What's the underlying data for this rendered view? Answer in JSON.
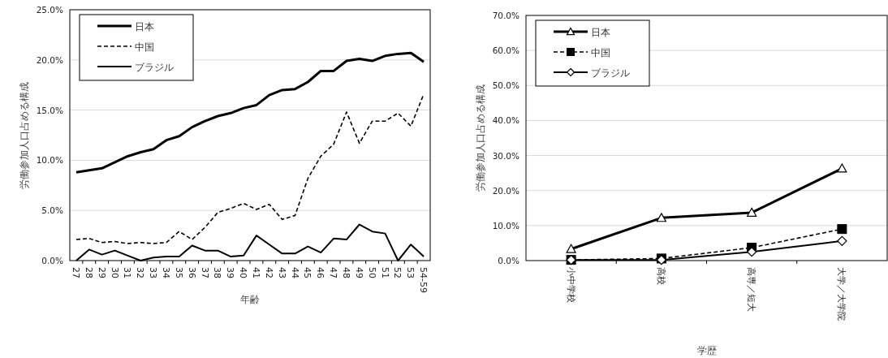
{
  "chart_data": [
    {
      "type": "line",
      "xlabel": "年齢",
      "ylabel": "労働参加人口占める構成",
      "categories": [
        "27",
        "28",
        "29",
        "30",
        "31",
        "32",
        "33",
        "34",
        "35",
        "36",
        "37",
        "38",
        "39",
        "40",
        "41",
        "42",
        "43",
        "44",
        "45",
        "46",
        "47",
        "48",
        "49",
        "50",
        "51",
        "52",
        "53",
        "54-59"
      ],
      "series": [
        {
          "name": "日本",
          "color": "#000000",
          "line_style": "solid",
          "marker": "none",
          "values": [
            8.8,
            9.0,
            9.2,
            9.8,
            10.4,
            10.8,
            11.1,
            12.0,
            12.4,
            13.3,
            13.9,
            14.4,
            14.7,
            15.2,
            15.5,
            16.5,
            17.0,
            17.1,
            17.8,
            18.9,
            18.9,
            19.9,
            20.1,
            19.9,
            20.4,
            20.6,
            20.7,
            19.8
          ]
        },
        {
          "name": "中国",
          "color": "#000000",
          "line_style": "dashed",
          "marker": "none",
          "values": [
            2.1,
            2.2,
            1.8,
            1.9,
            1.7,
            1.8,
            1.7,
            1.8,
            2.9,
            2.1,
            3.3,
            4.8,
            5.2,
            5.7,
            5.1,
            5.6,
            4.1,
            4.5,
            8.2,
            10.4,
            11.6,
            14.8,
            11.7,
            13.9,
            13.9,
            14.7,
            13.4,
            16.6
          ]
        },
        {
          "name": "ブラジル",
          "color": "#000000",
          "line_style": "solid",
          "marker": "none",
          "values": [
            0.0,
            1.1,
            0.6,
            1.0,
            0.5,
            0.0,
            0.3,
            0.4,
            0.4,
            1.5,
            1.0,
            1.0,
            0.4,
            0.5,
            2.5,
            1.6,
            0.7,
            0.7,
            1.4,
            0.8,
            2.2,
            2.1,
            3.6,
            2.9,
            2.7,
            0.0,
            1.6,
            0.4
          ]
        }
      ],
      "ylim": [
        0,
        25
      ],
      "yticks": [
        {
          "value": 0,
          "label": "0.0%"
        },
        {
          "value": 5,
          "label": "5.0%"
        },
        {
          "value": 10,
          "label": "10.0%"
        },
        {
          "value": 15,
          "label": "15.0%"
        },
        {
          "value": 20,
          "label": "20.0%"
        },
        {
          "value": 25,
          "label": "25.0%"
        }
      ],
      "grid": "y",
      "legend": "top left"
    },
    {
      "type": "line",
      "xlabel": "学歴",
      "ylabel": "労働参加人口占める構成",
      "categories": [
        "小中学校",
        "高校",
        "高専／短大",
        "大学／大学院"
      ],
      "series": [
        {
          "name": "日本",
          "color": "#000000",
          "line_style": "solid",
          "marker": "triangle",
          "values": [
            3.3,
            12.2,
            13.7,
            26.3
          ]
        },
        {
          "name": "中国",
          "color": "#000000",
          "line_style": "dashed",
          "marker": "square",
          "values": [
            0.2,
            0.6,
            3.7,
            9.0
          ]
        },
        {
          "name": "ブラジル",
          "color": "#000000",
          "line_style": "solid",
          "marker": "diamond",
          "values": [
            0.2,
            0.2,
            2.5,
            5.6
          ]
        }
      ],
      "ylim": [
        0,
        70
      ],
      "yticks": [
        {
          "value": 0,
          "label": "0.0%"
        },
        {
          "value": 10,
          "label": "10.0%"
        },
        {
          "value": 20,
          "label": "20.0%"
        },
        {
          "value": 30,
          "label": "30.0%"
        },
        {
          "value": 40,
          "label": "40.0%"
        },
        {
          "value": 50,
          "label": "50.0%"
        },
        {
          "value": 60,
          "label": "60.0%"
        },
        {
          "value": 70,
          "label": "70.0%"
        }
      ],
      "grid": "y",
      "legend": "top left"
    }
  ]
}
